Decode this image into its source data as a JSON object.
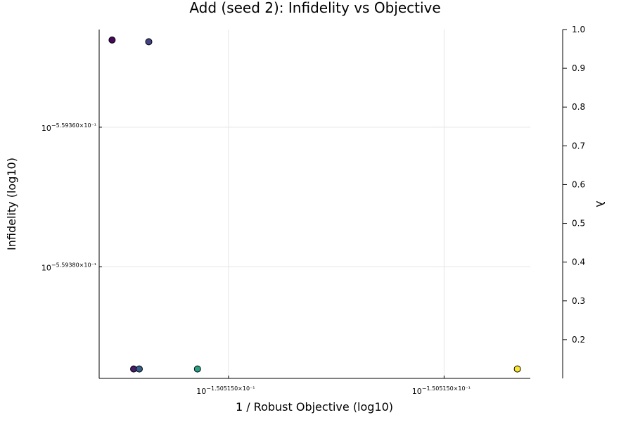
{
  "chart_data": {
    "type": "scatter",
    "title": "Add (seed 2): Infidelity vs Objective",
    "xlabel": "1 / Robust Objective (log10)",
    "ylabel": "Infidelity (log10)",
    "x_ticks": [
      {
        "value": 0.3,
        "base": "10",
        "exponent": "−1.505150×10⁻¹"
      },
      {
        "value": 0.8,
        "base": "10",
        "exponent": "−1.505150×10⁻¹"
      }
    ],
    "y_ticks": [
      {
        "value": 0.32,
        "base": "10",
        "exponent": "−5.59380×10⁻¹"
      },
      {
        "value": 0.72,
        "base": "10",
        "exponent": "−5.59360×10⁻¹"
      }
    ],
    "xlim": [
      0,
      1
    ],
    "ylim": [
      0,
      1
    ],
    "grid": true,
    "colorbar": {
      "label": "λ",
      "range": [
        0.1,
        1.0
      ],
      "ticks": [
        "0.2",
        "0.3",
        "0.4",
        "0.5",
        "0.6",
        "0.7",
        "0.8",
        "0.9",
        "1.0"
      ],
      "colormap": "viridis"
    },
    "points": [
      {
        "x": 0.03,
        "y": 0.97,
        "lambda": 0.12
      },
      {
        "x": 0.115,
        "y": 0.965,
        "lambda": 0.28
      },
      {
        "x": 0.08,
        "y": 0.027,
        "lambda": 0.17
      },
      {
        "x": 0.093,
        "y": 0.027,
        "lambda": 0.38
      },
      {
        "x": 0.228,
        "y": 0.027,
        "lambda": 0.62
      },
      {
        "x": 0.97,
        "y": 0.027,
        "lambda": 1.0
      }
    ]
  }
}
